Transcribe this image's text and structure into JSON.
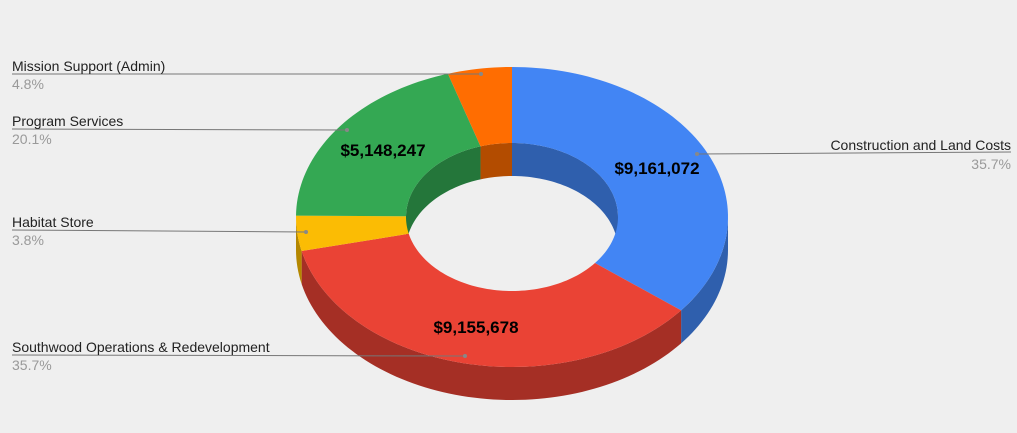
{
  "chart_data": {
    "type": "pie",
    "variant": "3d-donut",
    "title": "",
    "legend": "callout-labels",
    "slices": [
      {
        "name": "Construction and Land Costs",
        "value": 9161072,
        "percent_label": "35.7%",
        "value_label": "$9,161,072",
        "color": "#4285f4",
        "side_color": "#2f5fad",
        "label_side": "right"
      },
      {
        "name": "Southwood Operations & Redevelopment",
        "value": 9155678,
        "percent_label": "35.7%",
        "value_label": "$9,155,678",
        "color": "#ea4335",
        "side_color": "#a52f25",
        "label_side": "left"
      },
      {
        "name": "Habitat Store",
        "value": 974000,
        "percent_label": "3.8%",
        "value_label": "",
        "color": "#fbbc04",
        "side_color": "#b48700",
        "label_side": "left"
      },
      {
        "name": "Program Services",
        "value": 5148247,
        "percent_label": "20.1%",
        "value_label": "$5,148,247",
        "color": "#34a853",
        "side_color": "#24763a",
        "label_side": "left"
      },
      {
        "name": "Mission Support (Admin)",
        "value": 1231000,
        "percent_label": "4.8%",
        "value_label": "",
        "color": "#ff6d01",
        "side_color": "#b34c00",
        "label_side": "left"
      }
    ]
  }
}
